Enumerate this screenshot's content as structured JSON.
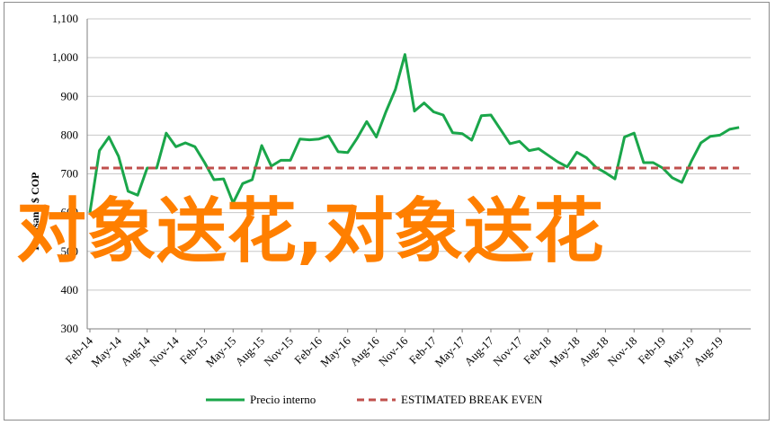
{
  "chart_data": {
    "type": "line",
    "ylabel": "Thousand $ COP",
    "ylim": [
      300,
      1100
    ],
    "yticks": [
      "300",
      "400",
      "500",
      "600",
      "700",
      "800",
      "900",
      "1,000",
      "1,100"
    ],
    "ytick_values": [
      300,
      400,
      500,
      600,
      700,
      800,
      900,
      1000,
      1100
    ],
    "xticks": [
      "Feb-14",
      "May-14",
      "Aug-14",
      "Nov-14",
      "Feb-15",
      "May-15",
      "Aug-15",
      "Nov-15",
      "Feb-16",
      "May-16",
      "Aug-16",
      "Nov-16",
      "Feb-17",
      "May-17",
      "Aug-17",
      "Nov-17",
      "Feb-18",
      "May-18",
      "Aug-18",
      "Nov-18",
      "Feb-19",
      "May-19",
      "Aug-19"
    ],
    "grid": true,
    "legend_position": "bottom",
    "x": [
      "Feb-14",
      "Mar-14",
      "Apr-14",
      "May-14",
      "Jun-14",
      "Jul-14",
      "Aug-14",
      "Sep-14",
      "Oct-14",
      "Nov-14",
      "Dec-14",
      "Jan-15",
      "Feb-15",
      "Mar-15",
      "Apr-15",
      "May-15",
      "Jun-15",
      "Jul-15",
      "Aug-15",
      "Sep-15",
      "Oct-15",
      "Nov-15",
      "Dec-15",
      "Jan-16",
      "Feb-16",
      "Mar-16",
      "Apr-16",
      "May-16",
      "Jun-16",
      "Jul-16",
      "Aug-16",
      "Sep-16",
      "Oct-16",
      "Nov-16",
      "Dec-16",
      "Jan-17",
      "Feb-17",
      "Mar-17",
      "Apr-17",
      "May-17",
      "Jun-17",
      "Jul-17",
      "Aug-17",
      "Sep-17",
      "Oct-17",
      "Nov-17",
      "Dec-17",
      "Jan-18",
      "Feb-18",
      "Mar-18",
      "Apr-18",
      "May-18",
      "Jun-18",
      "Jul-18",
      "Aug-18",
      "Sep-18",
      "Oct-18",
      "Nov-18",
      "Dec-18",
      "Jan-19",
      "Feb-19",
      "Mar-19",
      "Apr-19",
      "May-19",
      "Jun-19",
      "Jul-19",
      "Aug-19",
      "Sep-19",
      "Oct-19"
    ],
    "series": [
      {
        "name": "Precio interno",
        "color": "#1aa64a",
        "style": "solid",
        "values": [
          600,
          760,
          795,
          745,
          655,
          645,
          715,
          715,
          805,
          770,
          780,
          770,
          730,
          685,
          687,
          625,
          675,
          685,
          773,
          720,
          735,
          735,
          790,
          788,
          790,
          798,
          757,
          755,
          792,
          835,
          795,
          860,
          918,
          1008,
          862,
          883,
          860,
          852,
          806,
          804,
          787,
          850,
          852,
          815,
          778,
          784,
          760,
          765,
          748,
          731,
          718,
          756,
          742,
          717,
          703,
          687,
          795,
          805,
          729,
          729,
          715,
          690,
          678,
          733,
          780,
          797,
          800,
          815,
          820
        ]
      },
      {
        "name": "ESTIMATED BREAK EVEN",
        "color": "#c0504d",
        "style": "dashed",
        "values": [
          715,
          715,
          715,
          715,
          715,
          715,
          715,
          715,
          715,
          715,
          715,
          715,
          715,
          715,
          715,
          715,
          715,
          715,
          715,
          715,
          715,
          715,
          715,
          715,
          715,
          715,
          715,
          715,
          715,
          715,
          715,
          715,
          715,
          715,
          715,
          715,
          715,
          715,
          715,
          715,
          715,
          715,
          715,
          715,
          715,
          715,
          715,
          715,
          715,
          715,
          715,
          715,
          715,
          715,
          715,
          715,
          715,
          715,
          715,
          715,
          715,
          715,
          715,
          715,
          715,
          715,
          715,
          715,
          715
        ]
      }
    ]
  },
  "watermark": {
    "text": "对象送花,对象送花",
    "color": "#ff7f00"
  },
  "legend": {
    "items": [
      "Precio interno",
      "ESTIMATED BREAK EVEN"
    ]
  }
}
